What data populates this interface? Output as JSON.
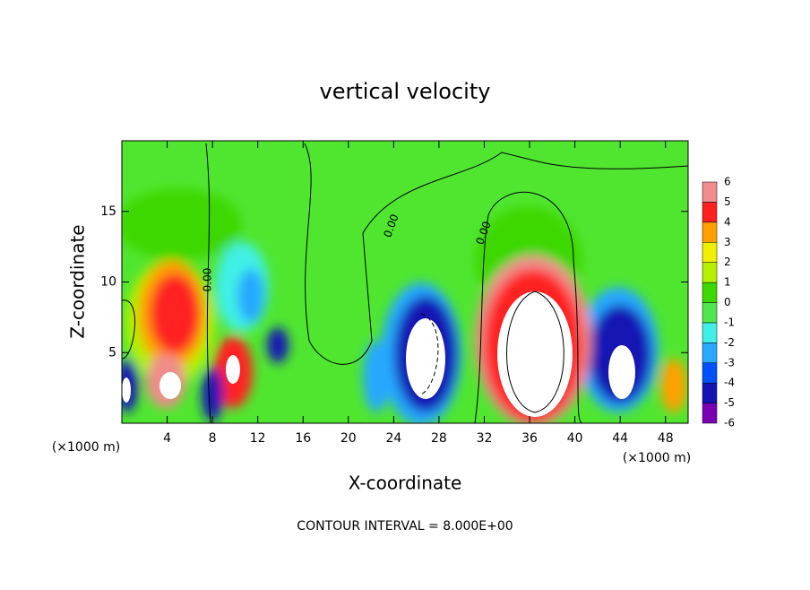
{
  "chart_data": {
    "type": "contour",
    "title": "vertical velocity",
    "x_label": "X-coordinate",
    "y_label": "Z-coordinate",
    "x_unit": "(×1000 m)",
    "footer": "CONTOUR INTERVAL = 8.000E+00",
    "contour_label": "0.00",
    "xlim": [
      0,
      50
    ],
    "ylim": [
      0,
      20
    ],
    "xticks": [
      4,
      8,
      12,
      16,
      20,
      24,
      28,
      32,
      36,
      40,
      44,
      48
    ],
    "yticks": [
      5,
      10,
      15
    ],
    "colorbar": {
      "levels": [
        -6,
        -5,
        -4,
        -3,
        -2,
        -1,
        0,
        1,
        2,
        3,
        4,
        5,
        6
      ],
      "colors": [
        "#7a00b4",
        "#1414b4",
        "#0050ff",
        "#28a8ff",
        "#40f0e6",
        "#50e650",
        "#3cd800",
        "#b4f000",
        "#f0f000",
        "#ffa000",
        "#ff2020",
        "#f08c8c"
      ]
    }
  }
}
